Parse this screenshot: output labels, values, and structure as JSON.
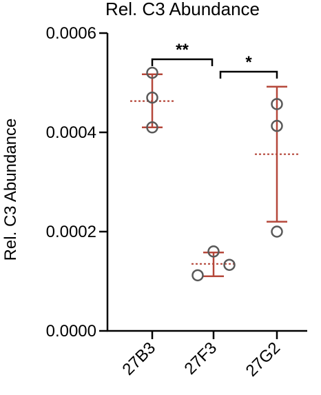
{
  "chart_data": {
    "type": "scatter",
    "title": "Rel.  C3 Abundance",
    "xlabel": "",
    "ylabel": "Rel.  C3 Abundance",
    "ylim": [
      0,
      0.0006
    ],
    "yticks": [
      "0.0000",
      "0.0002",
      "0.0004",
      "0.0006"
    ],
    "ytick_values": [
      0,
      0.0002,
      0.0004,
      0.0006
    ],
    "categories": [
      "27B3",
      "27F3",
      "27G2"
    ],
    "groups": [
      {
        "category": "27B3",
        "points": [
          0.00041,
          0.00047,
          0.00052
        ],
        "mean": 0.000463,
        "sd_low": 0.00041,
        "sd_high": 0.000517
      },
      {
        "category": "27F3",
        "points": [
          0.00016,
          0.000112,
          0.000133
        ],
        "mean": 0.000135,
        "sd_low": 0.00011,
        "sd_high": 0.000158
      },
      {
        "category": "27G2",
        "points": [
          0.000457,
          0.000413,
          0.0002
        ],
        "mean": 0.000356,
        "sd_low": 0.00022,
        "sd_high": 0.000492
      }
    ],
    "comparisons": [
      {
        "from": "27B3",
        "to": "27F3",
        "label": "**"
      },
      {
        "from": "27F3",
        "to": "27G2",
        "label": "*"
      }
    ],
    "colors": {
      "points": "#595959",
      "error_bars": "#b5473a",
      "axes": "#000000"
    },
    "grid": false
  }
}
